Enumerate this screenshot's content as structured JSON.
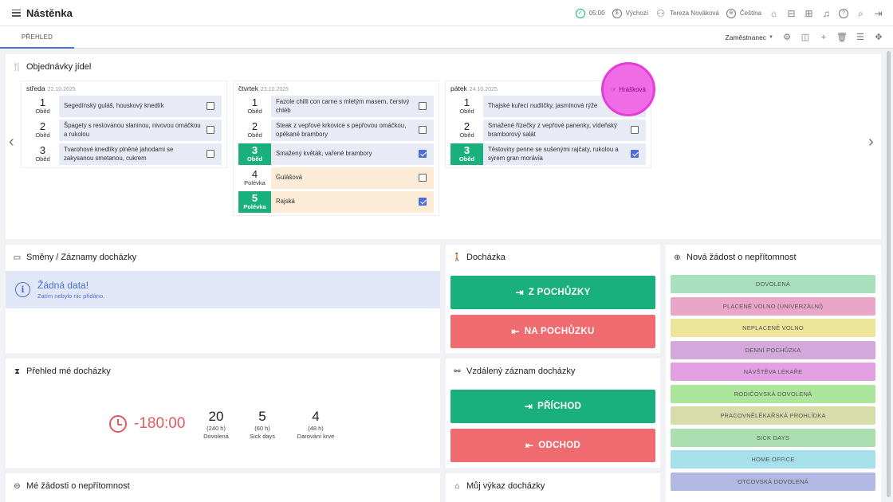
{
  "app": {
    "title": "Nástěnka",
    "time": "05:00",
    "location": "Výchozí",
    "user": "Tereza Nováková",
    "language": "Čeština"
  },
  "tabs": [
    {
      "label": "PŘEHLED",
      "active": true
    }
  ],
  "toolbar": {
    "role": "Zaměstnanec"
  },
  "meals": {
    "title": "Objednávky jídel",
    "days": [
      {
        "name": "středa",
        "date": "22.10.2025",
        "items": [
          {
            "num": "1",
            "type": "Oběd",
            "name": "Segedínský guláš, houskový knedlík",
            "checked": false,
            "selected": false
          },
          {
            "num": "2",
            "type": "Oběd",
            "name": "Špagety s restovanou slaninou, nivovou omáčkou a rukolou",
            "checked": false,
            "selected": false
          },
          {
            "num": "3",
            "type": "Oběd",
            "name": "Tvarohové knedlíky plněné jahodami se zakysanou smetanou, cukrem",
            "checked": false,
            "selected": false
          }
        ]
      },
      {
        "name": "čtvrtek",
        "date": "23.10.2025",
        "items": [
          {
            "num": "1",
            "type": "Oběd",
            "name": "Fazole chilli con carne s mletým masem, čerstvý chléb",
            "checked": false,
            "selected": false
          },
          {
            "num": "2",
            "type": "Oběd",
            "name": "Steak z vepřové krkovice s pepřovou omáčkou, opékané brambory",
            "checked": false,
            "selected": false
          },
          {
            "num": "3",
            "type": "Oběd",
            "name": "Smažený květák, vařené brambory",
            "checked": true,
            "selected": true
          },
          {
            "num": "4",
            "type": "Polévka",
            "name": "Gulášová",
            "checked": false,
            "selected": false
          },
          {
            "num": "5",
            "type": "Polévka",
            "name": "Rajská",
            "checked": true,
            "selected": true
          }
        ]
      },
      {
        "name": "pátek",
        "date": "24.10.2025",
        "items": [
          {
            "num": "1",
            "type": "Oběd",
            "name": "Thajské kuřecí nudličky, jasmínová rýže",
            "checked": false,
            "selected": false
          },
          {
            "num": "2",
            "type": "Oběd",
            "name": "Smažené řízečky z vepřové panenky, vídeňský bramborový salát",
            "checked": false,
            "selected": false
          },
          {
            "num": "3",
            "type": "Oběd",
            "name": "Těstoviny penne se sušenými rajčaty, rukolou a sýrem gran morávia",
            "checked": true,
            "selected": true
          }
        ]
      }
    ],
    "cursor_label": "Hrášková"
  },
  "shifts": {
    "title": "Směny / Záznamy docházky",
    "empty_title": "Žádná data!",
    "empty_sub": "Zatím nebylo nic přidáno."
  },
  "attendance": {
    "title": "Docházka",
    "from_trip": "Z POCHŮZKY",
    "to_trip": "NA POCHŮZKU"
  },
  "overview": {
    "title": "Přehled mé docházky",
    "balance": "-180:00",
    "stats": [
      {
        "value": "20",
        "hours": "(240 h)",
        "label": "Dovolená"
      },
      {
        "value": "5",
        "hours": "(60 h)",
        "label": "Sick days"
      },
      {
        "value": "4",
        "hours": "(48 h)",
        "label": "Darování krve"
      }
    ]
  },
  "remote": {
    "title": "Vzdálený záznam docházky",
    "arrival": "PŘÍCHOD",
    "departure": "ODCHOD"
  },
  "absence": {
    "title": "Nová žádost o nepřítomnost",
    "items": [
      {
        "label": "DOVOLENÁ",
        "color": "#a8e0bd"
      },
      {
        "label": "PLACENÉ VOLNO (UNIVERZÁLNÍ)",
        "color": "#eaa6c8"
      },
      {
        "label": "NEPLACENÉ VOLNO",
        "color": "#ece59a"
      },
      {
        "label": "DENNÍ POCHŮZKA",
        "color": "#d2a9da"
      },
      {
        "label": "NÁVŠTĚVA LÉKAŘE",
        "color": "#e3a0e2"
      },
      {
        "label": "RODIČOVSKÁ DOVOLENÁ",
        "color": "#abe69c"
      },
      {
        "label": "PRACOVNĚLÉKAŘSKÁ PROHLÍDKA",
        "color": "#d6dcaa"
      },
      {
        "label": "SICK DAYS",
        "color": "#abdeb1"
      },
      {
        "label": "HOME OFFICE",
        "color": "#a6e0ea"
      },
      {
        "label": "OTCOVSKÁ DOVOLENÁ",
        "color": "#b0b8e3"
      }
    ]
  },
  "my_requests": {
    "title": "Mé žádosti o nepřítomnost"
  },
  "report": {
    "title": "Můj výkaz docházky"
  }
}
